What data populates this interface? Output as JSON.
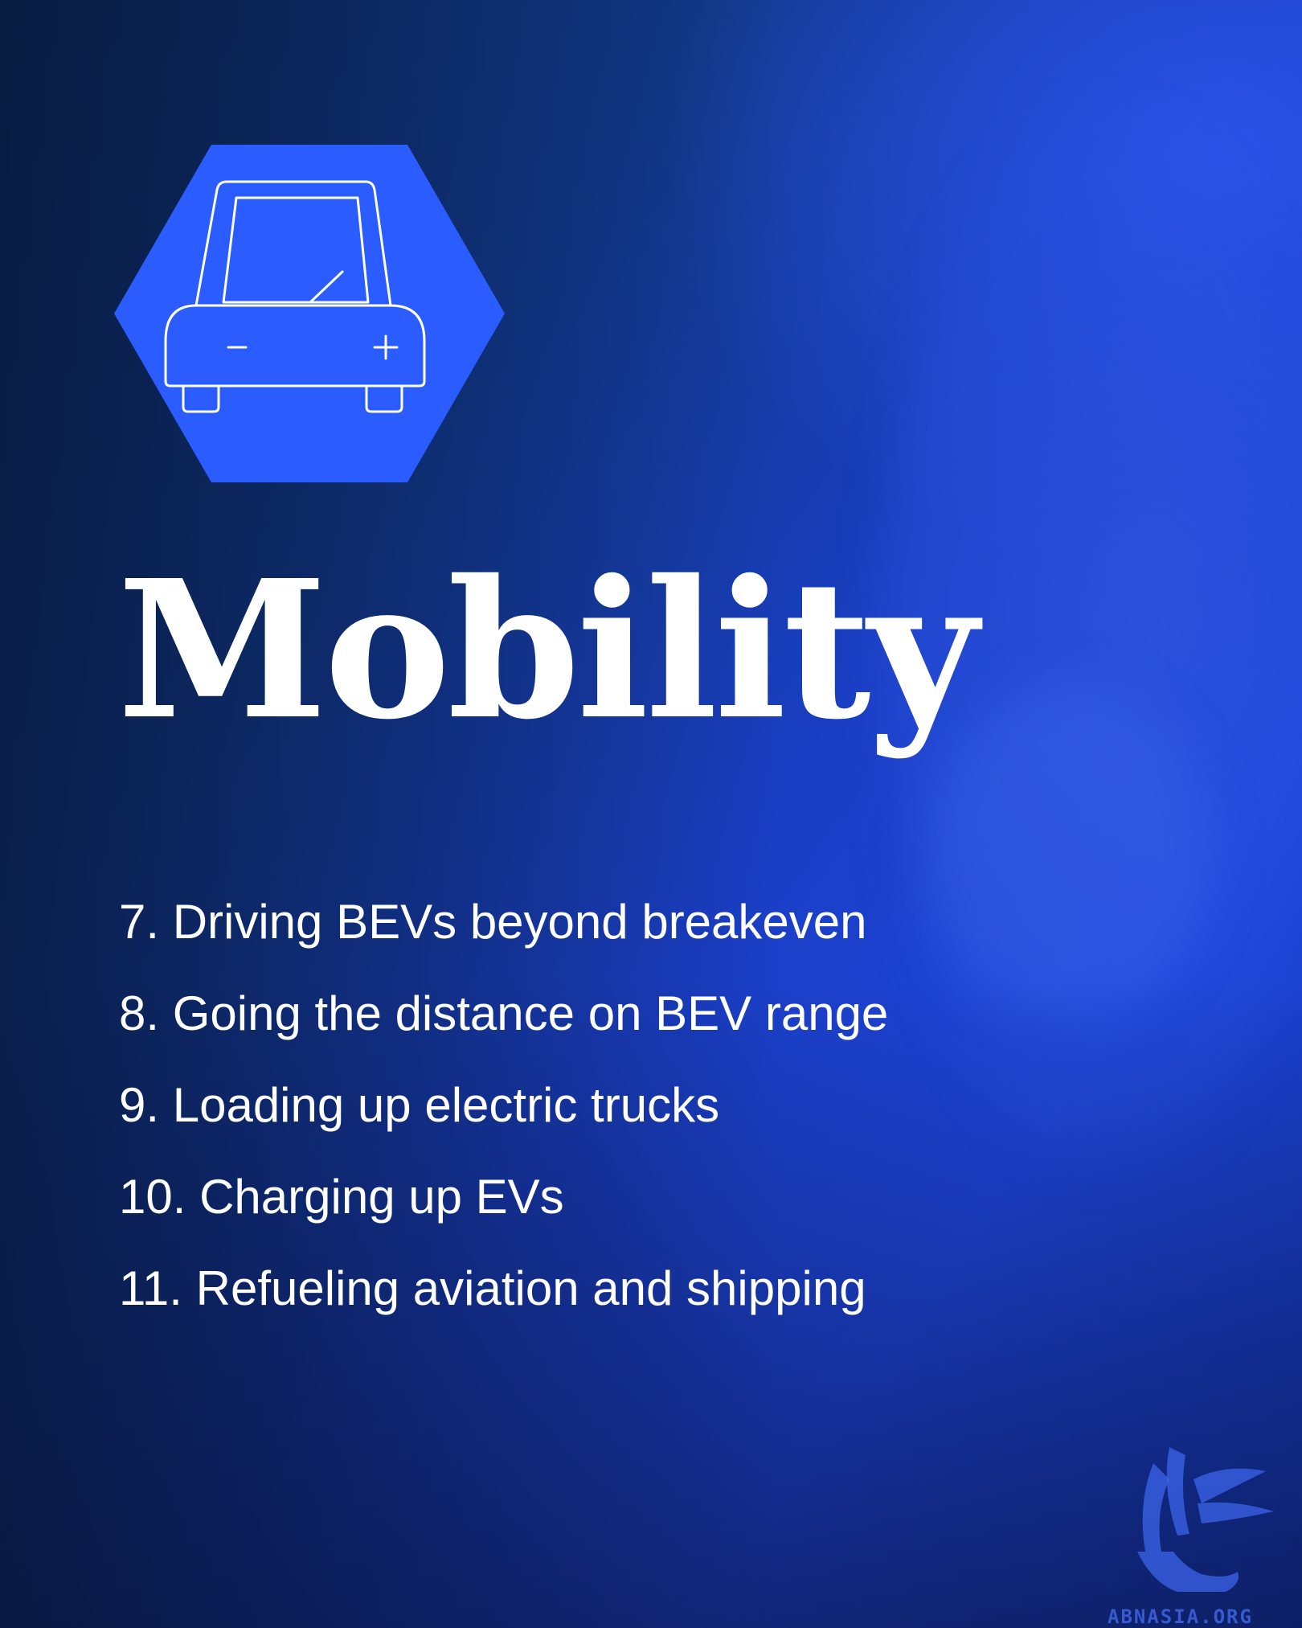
{
  "title": "Mobility",
  "icon": "car-battery-icon",
  "colors": {
    "hexagon": "#2a5cff",
    "background": "#1a3ec4",
    "text": "#ffffff"
  },
  "items": [
    "7. Driving BEVs beyond breakeven",
    "8. Going the distance on BEV range",
    "9. Loading up electric trucks",
    "10. Charging up EVs",
    "11. Refueling aviation and shipping"
  ],
  "watermark": {
    "text": "ABNASIA.ORG"
  }
}
